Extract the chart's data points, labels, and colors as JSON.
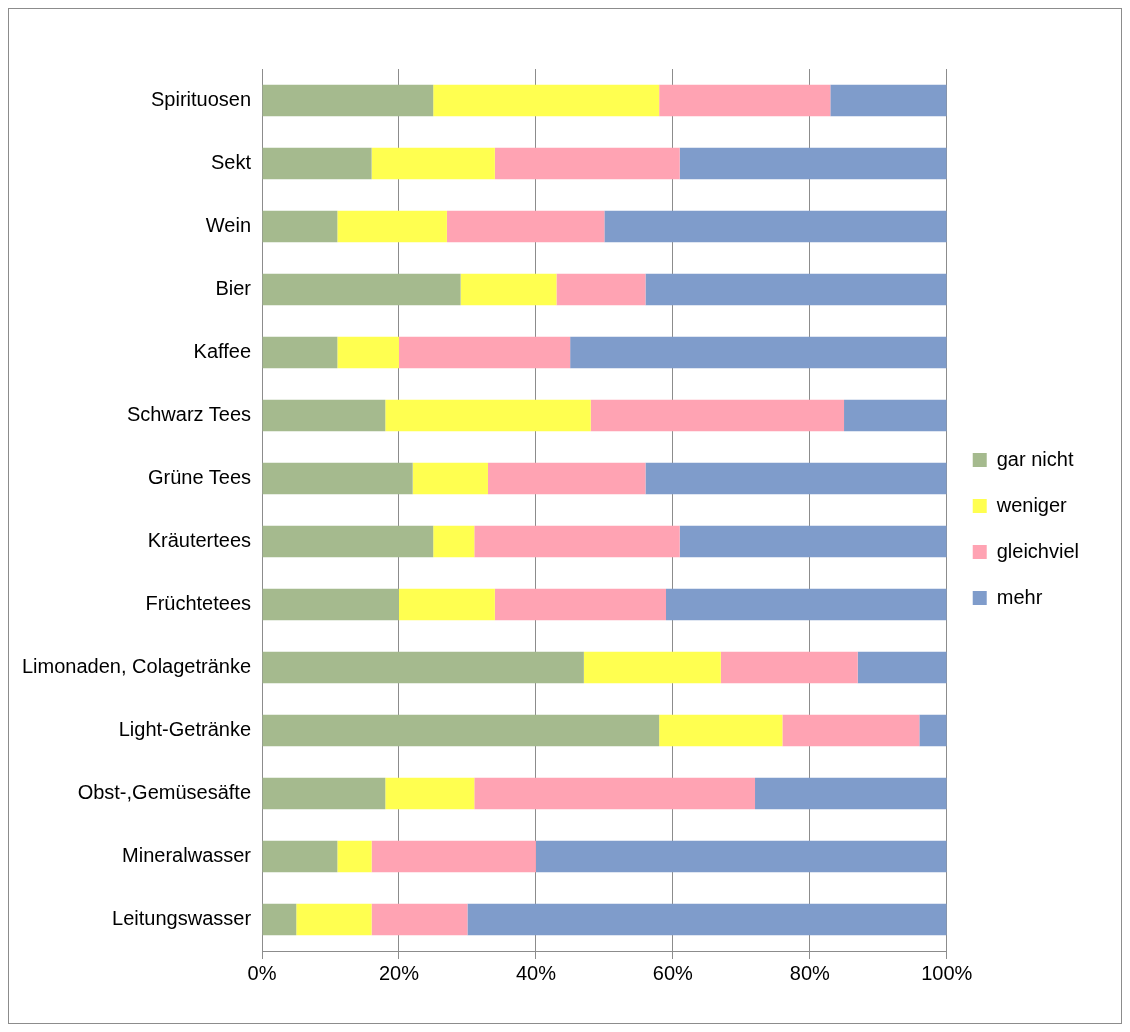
{
  "chart_data": {
    "type": "bar",
    "orientation": "horizontal",
    "stacked": true,
    "categories": [
      "Spirituosen",
      "Sekt",
      "Wein",
      "Bier",
      "Kaffee",
      "Schwarz Tees",
      "Grüne Tees",
      "Kräutertees",
      "Früchtetees",
      "Limonaden, Colagetränke",
      "Light-Getränke",
      "Obst-,Gemüsesäfte",
      "Mineralwasser",
      "Leitungswasser"
    ],
    "series": [
      {
        "name": "gar nicht",
        "color": "#a5ba8e",
        "values": [
          25,
          16,
          11,
          29,
          11,
          18,
          22,
          25,
          20,
          47,
          58,
          18,
          11,
          5
        ]
      },
      {
        "name": "weniger",
        "color": "#ffff50",
        "values": [
          33,
          18,
          16,
          14,
          9,
          30,
          11,
          6,
          14,
          20,
          18,
          13,
          5,
          11
        ]
      },
      {
        "name": "gleichviel",
        "color": "#ffa3b3",
        "values": [
          25,
          27,
          23,
          13,
          25,
          37,
          23,
          30,
          25,
          20,
          20,
          41,
          24,
          14
        ]
      },
      {
        "name": "mehr",
        "color": "#7f9ccb",
        "values": [
          17,
          39,
          50,
          44,
          55,
          15,
          44,
          39,
          41,
          13,
          4,
          28,
          60,
          70
        ]
      }
    ],
    "xlim": [
      0,
      100
    ],
    "xticks": [
      {
        "value": 0,
        "label": "0%"
      },
      {
        "value": 20,
        "label": "20%"
      },
      {
        "value": 40,
        "label": "40%"
      },
      {
        "value": 60,
        "label": "60%"
      },
      {
        "value": 80,
        "label": "80%"
      },
      {
        "value": 100,
        "label": "100%"
      }
    ],
    "grid": "x",
    "legend": "right"
  }
}
